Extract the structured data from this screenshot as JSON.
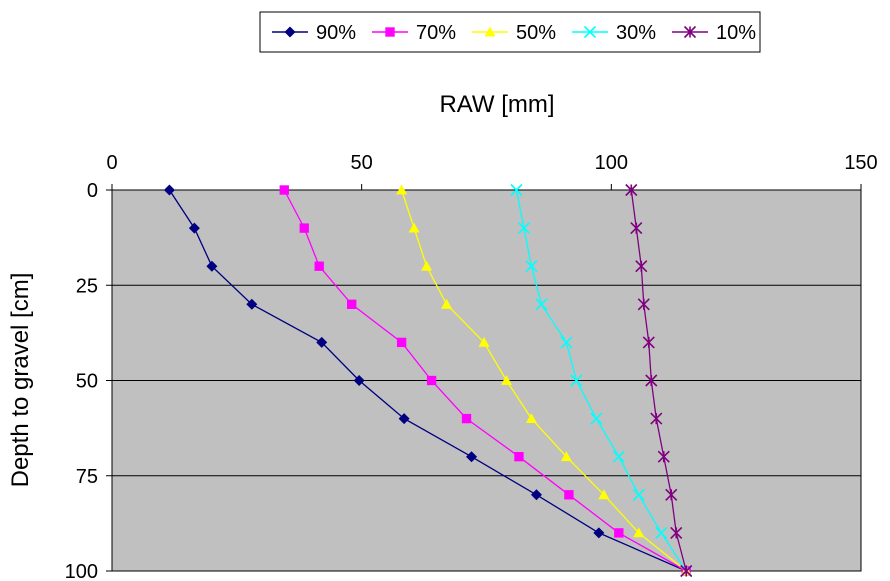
{
  "chart_data": {
    "type": "line",
    "xlabel": "RAW [mm]",
    "ylabel": "Depth to gravel [cm]",
    "xlim": [
      0,
      150
    ],
    "ylim": [
      0,
      100
    ],
    "y_reversed": true,
    "x_axis_position": "top",
    "x_ticks": [
      0,
      50,
      100,
      150
    ],
    "y_ticks": [
      0,
      25,
      50,
      75,
      100
    ],
    "grid": "horizontal",
    "plot_background": "#c0c0c0",
    "legend_position": "top",
    "series": [
      {
        "name": "90%",
        "color": "#000080",
        "marker": "diamond",
        "points": [
          [
            11.5,
            0
          ],
          [
            16.5,
            10
          ],
          [
            20,
            20
          ],
          [
            28,
            30
          ],
          [
            42,
            40
          ],
          [
            49.5,
            50
          ],
          [
            58.5,
            60
          ],
          [
            72,
            70
          ],
          [
            85,
            80
          ],
          [
            97.5,
            90
          ],
          [
            115,
            100
          ]
        ]
      },
      {
        "name": "70%",
        "color": "#ff00ff",
        "marker": "square",
        "points": [
          [
            34.5,
            0
          ],
          [
            38.5,
            10
          ],
          [
            41.5,
            20
          ],
          [
            48,
            30
          ],
          [
            58,
            40
          ],
          [
            64,
            50
          ],
          [
            71,
            60
          ],
          [
            81.5,
            70
          ],
          [
            91.5,
            80
          ],
          [
            101.5,
            90
          ],
          [
            115,
            100
          ]
        ]
      },
      {
        "name": "50%",
        "color": "#ffff00",
        "marker": "triangle",
        "points": [
          [
            58,
            0
          ],
          [
            60.5,
            10
          ],
          [
            63,
            20
          ],
          [
            67,
            30
          ],
          [
            74.5,
            40
          ],
          [
            79,
            50
          ],
          [
            84,
            60
          ],
          [
            91,
            70
          ],
          [
            98.5,
            80
          ],
          [
            105.5,
            90
          ],
          [
            115,
            100
          ]
        ]
      },
      {
        "name": "30%",
        "color": "#00ffff",
        "marker": "x",
        "points": [
          [
            81,
            0
          ],
          [
            82.5,
            10
          ],
          [
            84,
            20
          ],
          [
            86,
            30
          ],
          [
            91,
            40
          ],
          [
            93,
            50
          ],
          [
            97,
            60
          ],
          [
            101.5,
            70
          ],
          [
            105.5,
            80
          ],
          [
            110,
            90
          ],
          [
            115,
            100
          ]
        ]
      },
      {
        "name": "10%",
        "color": "#800080",
        "marker": "asterisk",
        "points": [
          [
            104,
            0
          ],
          [
            105,
            10
          ],
          [
            106,
            20
          ],
          [
            106.5,
            30
          ],
          [
            107.5,
            40
          ],
          [
            108,
            50
          ],
          [
            109,
            60
          ],
          [
            110.5,
            70
          ],
          [
            112,
            80
          ],
          [
            113,
            90
          ],
          [
            115,
            100
          ]
        ]
      }
    ]
  }
}
